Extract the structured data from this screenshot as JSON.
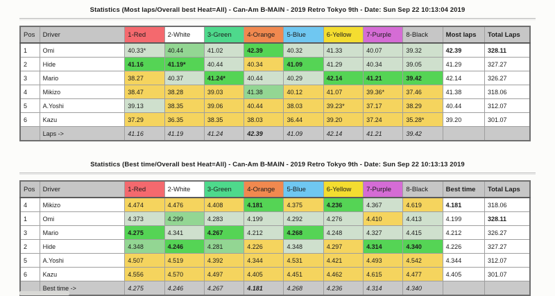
{
  "colors": {
    "header_gray": "#c6c6c6",
    "footer_gray": "#c9c9c9",
    "red": "#f4696e",
    "white": "#ffffff",
    "green": "#4ed98c",
    "orange": "#f1894f",
    "blue": "#6fc7f1",
    "yellow": "#f4dd30",
    "purple": "#d56cd5",
    "cell_yellow": "#f5d45e",
    "cell_green_pale": "#cfe0cd",
    "cell_green_mid": "#93d693",
    "cell_green_vivid": "#55d455"
  },
  "tables": [
    {
      "title": "Statistics (Most laps/Overall best Heat=All) - Can-Am B-MAIN - 2019 Retro Tokyo 9th - Date: Sun Sep 22 10:13:04 2019",
      "headers": {
        "pos": "Pos",
        "driver": "Driver",
        "cars": [
          "1-Red",
          "2-White",
          "3-Green",
          "4-Orange",
          "5-Blue",
          "6-Yellow",
          "7-Purple",
          "8-Black"
        ],
        "car_bg": [
          "red",
          "white",
          "green",
          "orange",
          "blue",
          "yellow",
          "purple",
          "header_gray"
        ],
        "summary": "Most laps",
        "total": "Total Laps"
      },
      "rows": [
        {
          "pos": "1",
          "driver": "Omi",
          "cells": [
            [
              "40.33*",
              "L",
              0
            ],
            [
              "40.44",
              "M",
              0
            ],
            [
              "41.02",
              "L",
              0
            ],
            [
              "42.39",
              "V",
              1
            ],
            [
              "40.32",
              "L",
              0
            ],
            [
              "41.33",
              "L",
              0
            ],
            [
              "40.07",
              "L",
              0
            ],
            [
              "39.32",
              "L",
              0
            ]
          ],
          "summary": [
            "42.39",
            1
          ],
          "total": [
            "328.11",
            1
          ]
        },
        {
          "pos": "2",
          "driver": "Hide",
          "cells": [
            [
              "41.16",
              "V",
              1
            ],
            [
              "41.19*",
              "V",
              1
            ],
            [
              "40.44",
              "L",
              0
            ],
            [
              "40.34",
              "Y",
              0
            ],
            [
              "41.09",
              "V",
              1
            ],
            [
              "41.29",
              "L",
              0
            ],
            [
              "40.34",
              "L",
              0
            ],
            [
              "39.05",
              "L",
              0
            ]
          ],
          "summary": [
            "41.29",
            0
          ],
          "total": [
            "327.27",
            0
          ]
        },
        {
          "pos": "3",
          "driver": "Mario",
          "cells": [
            [
              "38.27",
              "Y",
              0
            ],
            [
              "40.37",
              "L",
              0
            ],
            [
              "41.24*",
              "V",
              1
            ],
            [
              "40.44",
              "L",
              0
            ],
            [
              "40.29",
              "L",
              0
            ],
            [
              "42.14",
              "V",
              1
            ],
            [
              "41.21",
              "V",
              1
            ],
            [
              "39.42",
              "V",
              1
            ]
          ],
          "summary": [
            "42.14",
            0
          ],
          "total": [
            "326.27",
            0
          ]
        },
        {
          "pos": "4",
          "driver": "Mikizo",
          "cells": [
            [
              "38.47",
              "Y",
              0
            ],
            [
              "38.28",
              "Y",
              0
            ],
            [
              "39.03",
              "Y",
              0
            ],
            [
              "41.38",
              "M",
              0
            ],
            [
              "40.12",
              "Y",
              0
            ],
            [
              "41.07",
              "Y",
              0
            ],
            [
              "39.36*",
              "Y",
              0
            ],
            [
              "37.46",
              "Y",
              0
            ]
          ],
          "summary": [
            "41.38",
            0
          ],
          "total": [
            "318.06",
            0
          ]
        },
        {
          "pos": "5",
          "driver": "A.Yoshi",
          "cells": [
            [
              "39.13",
              "L",
              0
            ],
            [
              "38.35",
              "Y",
              0
            ],
            [
              "39.06",
              "Y",
              0
            ],
            [
              "40.44",
              "Y",
              0
            ],
            [
              "38.03",
              "Y",
              0
            ],
            [
              "39.23*",
              "Y",
              0
            ],
            [
              "37.17",
              "Y",
              0
            ],
            [
              "38.29",
              "Y",
              0
            ]
          ],
          "summary": [
            "40.44",
            0
          ],
          "total": [
            "312.07",
            0
          ]
        },
        {
          "pos": "6",
          "driver": "Kazu",
          "cells": [
            [
              "37.29",
              "Y",
              0
            ],
            [
              "36.35",
              "Y",
              0
            ],
            [
              "38.35",
              "Y",
              0
            ],
            [
              "38.03",
              "Y",
              0
            ],
            [
              "36.44",
              "Y",
              0
            ],
            [
              "39.20",
              "Y",
              0
            ],
            [
              "37.24",
              "Y",
              0
            ],
            [
              "35.28*",
              "Y",
              0
            ]
          ],
          "summary": [
            "39.20",
            0
          ],
          "total": [
            "301.07",
            0
          ]
        }
      ],
      "footer": {
        "label": "Laps ->",
        "values": [
          [
            "41.16",
            0
          ],
          [
            "41.19",
            0
          ],
          [
            "41.24",
            0
          ],
          [
            "42.39",
            1
          ],
          [
            "41.09",
            0
          ],
          [
            "42.14",
            0
          ],
          [
            "41.21",
            0
          ],
          [
            "39.42",
            0
          ]
        ]
      }
    },
    {
      "title": "Statistics (Best time/Overall best Heat=All) - Can-Am B-MAIN - 2019 Retro Tokyo 9th - Date: Sun Sep 22 10:13:13 2019",
      "headers": {
        "pos": "Pos",
        "driver": "Driver",
        "cars": [
          "1-Red",
          "2-White",
          "3-Green",
          "4-Orange",
          "5-Blue",
          "6-Yellow",
          "7-Purple",
          "8-Black"
        ],
        "car_bg": [
          "red",
          "white",
          "green",
          "orange",
          "blue",
          "yellow",
          "purple",
          "header_gray"
        ],
        "summary": "Best time",
        "total": "Total Laps"
      },
      "rows": [
        {
          "pos": "4",
          "driver": "Mikizo",
          "cells": [
            [
              "4.474",
              "Y",
              0
            ],
            [
              "4.476",
              "Y",
              0
            ],
            [
              "4.408",
              "Y",
              0
            ],
            [
              "4.181",
              "V",
              1
            ],
            [
              "4.375",
              "Y",
              0
            ],
            [
              "4.236",
              "V",
              1
            ],
            [
              "4.367",
              "L",
              0
            ],
            [
              "4.619",
              "Y",
              0
            ]
          ],
          "summary": [
            "4.181",
            1
          ],
          "total": [
            "318.06",
            0
          ]
        },
        {
          "pos": "1",
          "driver": "Omi",
          "cells": [
            [
              "4.373",
              "L",
              0
            ],
            [
              "4.299",
              "M",
              0
            ],
            [
              "4.283",
              "L",
              0
            ],
            [
              "4.199",
              "L",
              0
            ],
            [
              "4.292",
              "L",
              0
            ],
            [
              "4.276",
              "L",
              0
            ],
            [
              "4.410",
              "Y",
              0
            ],
            [
              "4.413",
              "L",
              0
            ]
          ],
          "summary": [
            "4.199",
            0
          ],
          "total": [
            "328.11",
            1
          ]
        },
        {
          "pos": "3",
          "driver": "Mario",
          "cells": [
            [
              "4.275",
              "V",
              1
            ],
            [
              "4.341",
              "L",
              0
            ],
            [
              "4.267",
              "V",
              1
            ],
            [
              "4.212",
              "L",
              0
            ],
            [
              "4.268",
              "V",
              1
            ],
            [
              "4.248",
              "L",
              0
            ],
            [
              "4.327",
              "L",
              0
            ],
            [
              "4.415",
              "L",
              0
            ]
          ],
          "summary": [
            "4.212",
            0
          ],
          "total": [
            "326.27",
            0
          ]
        },
        {
          "pos": "2",
          "driver": "Hide",
          "cells": [
            [
              "4.348",
              "M",
              0
            ],
            [
              "4.246",
              "V",
              1
            ],
            [
              "4.281",
              "M",
              0
            ],
            [
              "4.226",
              "Y",
              0
            ],
            [
              "4.348",
              "L",
              0
            ],
            [
              "4.297",
              "Y",
              0
            ],
            [
              "4.314",
              "V",
              1
            ],
            [
              "4.340",
              "V",
              1
            ]
          ],
          "summary": [
            "4.226",
            0
          ],
          "total": [
            "327.27",
            0
          ]
        },
        {
          "pos": "5",
          "driver": "A.Yoshi",
          "cells": [
            [
              "4.507",
              "Y",
              0
            ],
            [
              "4.519",
              "Y",
              0
            ],
            [
              "4.392",
              "Y",
              0
            ],
            [
              "4.344",
              "Y",
              0
            ],
            [
              "4.531",
              "Y",
              0
            ],
            [
              "4.421",
              "Y",
              0
            ],
            [
              "4.493",
              "Y",
              0
            ],
            [
              "4.542",
              "Y",
              0
            ]
          ],
          "summary": [
            "4.344",
            0
          ],
          "total": [
            "312.07",
            0
          ]
        },
        {
          "pos": "6",
          "driver": "Kazu",
          "cells": [
            [
              "4.556",
              "Y",
              0
            ],
            [
              "4.570",
              "Y",
              0
            ],
            [
              "4.497",
              "Y",
              0
            ],
            [
              "4.405",
              "Y",
              0
            ],
            [
              "4.451",
              "Y",
              0
            ],
            [
              "4.462",
              "Y",
              0
            ],
            [
              "4.615",
              "Y",
              0
            ],
            [
              "4.477",
              "Y",
              0
            ]
          ],
          "summary": [
            "4.405",
            0
          ],
          "total": [
            "301.07",
            0
          ]
        }
      ],
      "footer": {
        "label": "Best time ->",
        "values": [
          [
            "4.275",
            0
          ],
          [
            "4.246",
            0
          ],
          [
            "4.267",
            0
          ],
          [
            "4.181",
            1
          ],
          [
            "4.268",
            0
          ],
          [
            "4.236",
            0
          ],
          [
            "4.314",
            0
          ],
          [
            "4.340",
            0
          ]
        ]
      }
    }
  ]
}
